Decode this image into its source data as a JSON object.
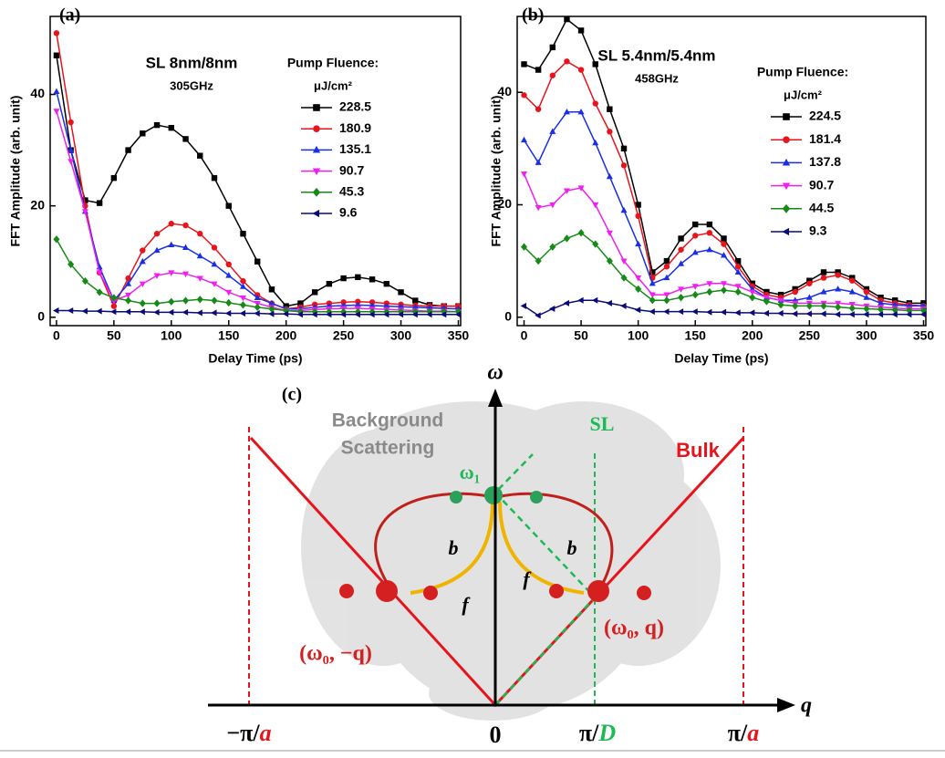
{
  "chart_data": [
    {
      "type": "line",
      "panel": "(a)",
      "title": "SL 8nm/8nm",
      "subtitle": "305GHz",
      "x_label": "Delay Time (ps)",
      "y_label": "FFT Amplitude (arb. unit)",
      "legend_title": "Pump Fluence:",
      "legend_unit": "μJ/cm²",
      "x": [
        0,
        12.5,
        25,
        37.5,
        50,
        62.5,
        75,
        87.5,
        100,
        112.5,
        125,
        137.5,
        150,
        162.5,
        175,
        187.5,
        200,
        212.5,
        225,
        237.5,
        250,
        262.5,
        275,
        287.5,
        300,
        312.5,
        325,
        337.5,
        350
      ],
      "xlim": [
        -5.5,
        352
      ],
      "ylim": [
        -1.5,
        54
      ],
      "xticks": [
        0,
        50,
        100,
        150,
        200,
        250,
        300,
        350
      ],
      "yticks": [
        0,
        20,
        40
      ],
      "series": [
        {
          "name": "228.5",
          "color": "#000000",
          "marker": "square",
          "values": [
            47,
            30,
            21,
            20.5,
            25,
            30,
            33,
            34.5,
            34,
            32,
            29,
            25,
            20,
            15,
            10,
            5,
            2,
            2.5,
            4.5,
            6,
            7,
            7.2,
            6.8,
            6,
            4.5,
            3,
            2.2,
            2,
            2
          ]
        },
        {
          "name": "180.9",
          "color": "#e8141c",
          "marker": "circle",
          "values": [
            51,
            35,
            20,
            8,
            2,
            7,
            12,
            15,
            16.8,
            16.5,
            15,
            12.5,
            9.5,
            6.5,
            4,
            2.5,
            1.5,
            1.8,
            2.3,
            2.5,
            2.7,
            2.8,
            2.7,
            2.5,
            2.3,
            2.1,
            2,
            2,
            2
          ]
        },
        {
          "name": "135.1",
          "color": "#1a2ee6",
          "marker": "triangle-up",
          "values": [
            40.5,
            30,
            19,
            9,
            3,
            6,
            10,
            12,
            13,
            12.5,
            11,
            9.5,
            7.5,
            5.5,
            3.5,
            2.5,
            1.5,
            1.5,
            1.8,
            2,
            2.1,
            2.2,
            2.1,
            2,
            1.9,
            1.8,
            1.7,
            1.6,
            1.5
          ]
        },
        {
          "name": "90.7",
          "color": "#f01ef0",
          "marker": "triangle-down",
          "values": [
            37,
            28,
            19,
            8,
            3,
            4,
            6,
            7.5,
            8,
            7.8,
            7,
            6,
            4.5,
            3.5,
            2.5,
            1.8,
            1.2,
            1.2,
            1.4,
            1.5,
            1.6,
            1.6,
            1.5,
            1.4,
            1.3,
            1.2,
            1.1,
            1.1,
            1
          ]
        },
        {
          "name": "45.3",
          "color": "#168a16",
          "marker": "diamond",
          "values": [
            14,
            9.5,
            6.5,
            4.5,
            3.5,
            3,
            2.5,
            2.5,
            2.8,
            3,
            3.2,
            3,
            2.6,
            2.2,
            1.8,
            1.5,
            1.2,
            1,
            1,
            1,
            1,
            1,
            1,
            1,
            1,
            1,
            1,
            1,
            1
          ]
        },
        {
          "name": "9.6",
          "color": "#0a0a78",
          "marker": "triangle-left",
          "values": [
            1.2,
            1.2,
            1.1,
            1.1,
            1,
            1,
            1,
            0.9,
            0.9,
            0.9,
            0.8,
            0.8,
            0.7,
            0.7,
            0.7,
            0.6,
            0.6,
            0.5,
            0.5,
            0.5,
            0.5,
            0.5,
            0.5,
            0.5,
            0.5,
            0.5,
            0.5,
            0.5,
            0.5
          ]
        }
      ]
    },
    {
      "type": "line",
      "panel": "(b)",
      "title": "SL 5.4nm/5.4nm",
      "subtitle": "458GHz",
      "x_label": "Delay Time (ps)",
      "y_label": "FFT Amplitude (arb. unit)",
      "legend_title": "Pump Fluence:",
      "legend_unit": "μJ/cm²",
      "x": [
        0,
        12.5,
        25,
        37.5,
        50,
        62.5,
        75,
        87.5,
        100,
        112.5,
        125,
        137.5,
        150,
        162.5,
        175,
        187.5,
        200,
        212.5,
        225,
        237.5,
        250,
        262.5,
        275,
        287.5,
        300,
        312.5,
        325,
        337.5,
        350
      ],
      "xlim": [
        -6,
        352
      ],
      "ylim": [
        -1.5,
        53.5
      ],
      "xticks": [
        0,
        50,
        100,
        150,
        200,
        250,
        300,
        350
      ],
      "yticks": [
        0,
        20,
        40
      ],
      "series": [
        {
          "name": "224.5",
          "color": "#000000",
          "marker": "square",
          "values": [
            45,
            44,
            48,
            53,
            51,
            45,
            37,
            30,
            20,
            8,
            10,
            14,
            16.5,
            16.5,
            14,
            10,
            6,
            4.5,
            4,
            5,
            6.5,
            8,
            8,
            7,
            5,
            3.5,
            3,
            2.5,
            2.5
          ]
        },
        {
          "name": "181.4",
          "color": "#e8141c",
          "marker": "circle",
          "values": [
            39.5,
            37,
            43,
            45.5,
            44,
            38,
            33,
            27,
            18,
            7,
            9,
            12,
            14.5,
            15,
            13,
            9,
            5.5,
            4,
            3.5,
            4.5,
            6,
            7,
            7.5,
            6.5,
            4.5,
            3,
            2.5,
            2.2,
            2
          ]
        },
        {
          "name": "137.8",
          "color": "#1a2ee6",
          "marker": "triangle-up",
          "values": [
            31.5,
            27.5,
            33,
            36.5,
            36.5,
            31,
            25,
            19,
            13,
            6,
            7,
            9.5,
            11.5,
            12,
            11,
            8,
            5,
            3.5,
            3,
            3,
            3.5,
            4.5,
            5,
            4.5,
            3.5,
            2.5,
            2.2,
            2,
            2
          ]
        },
        {
          "name": "90.7",
          "color": "#f01ef0",
          "marker": "triangle-down",
          "values": [
            25.5,
            19.5,
            20,
            22.5,
            23,
            20,
            15,
            10,
            7,
            4,
            4,
            5,
            5.5,
            6,
            6,
            5.5,
            4.5,
            3.5,
            3,
            2.5,
            2.5,
            2.5,
            2.5,
            2.3,
            2,
            1.8,
            1.6,
            1.5,
            1.5
          ]
        },
        {
          "name": "44.5",
          "color": "#168a16",
          "marker": "diamond",
          "values": [
            12.5,
            10,
            12.5,
            14,
            15,
            13,
            10,
            7,
            5,
            3,
            3,
            3.5,
            4,
            4.5,
            4.8,
            4.5,
            3.5,
            2.8,
            2.2,
            2,
            2,
            2,
            1.8,
            1.6,
            1.5,
            1.4,
            1.3,
            1.2,
            1.2
          ]
        },
        {
          "name": "9.3",
          "color": "#0a0a78",
          "marker": "triangle-left",
          "values": [
            2,
            0.3,
            1.5,
            2.5,
            3,
            3,
            2.5,
            2,
            1.3,
            1,
            1,
            1,
            1,
            0.9,
            0.9,
            0.8,
            0.8,
            0.7,
            0.7,
            0.6,
            0.6,
            0.6,
            0.5,
            0.5,
            0.5,
            0.5,
            0.5,
            0.5,
            0.5
          ]
        }
      ]
    }
  ],
  "diagram": {
    "panel": "(c)",
    "y_axis": "ω",
    "x_axis": "q",
    "background": [
      "Background",
      "Scattering"
    ],
    "sl": "SL",
    "bulk": "Bulk",
    "omega1": "ω₁",
    "backward": "b",
    "forward": "f",
    "left_point": "(ω₀, −q)",
    "right_point": "(ω₀, q)",
    "x_labels": [
      [
        "−π/",
        "a"
      ],
      [
        "0"
      ],
      [
        "π/",
        "D"
      ],
      [
        "π/",
        "a"
      ]
    ]
  }
}
